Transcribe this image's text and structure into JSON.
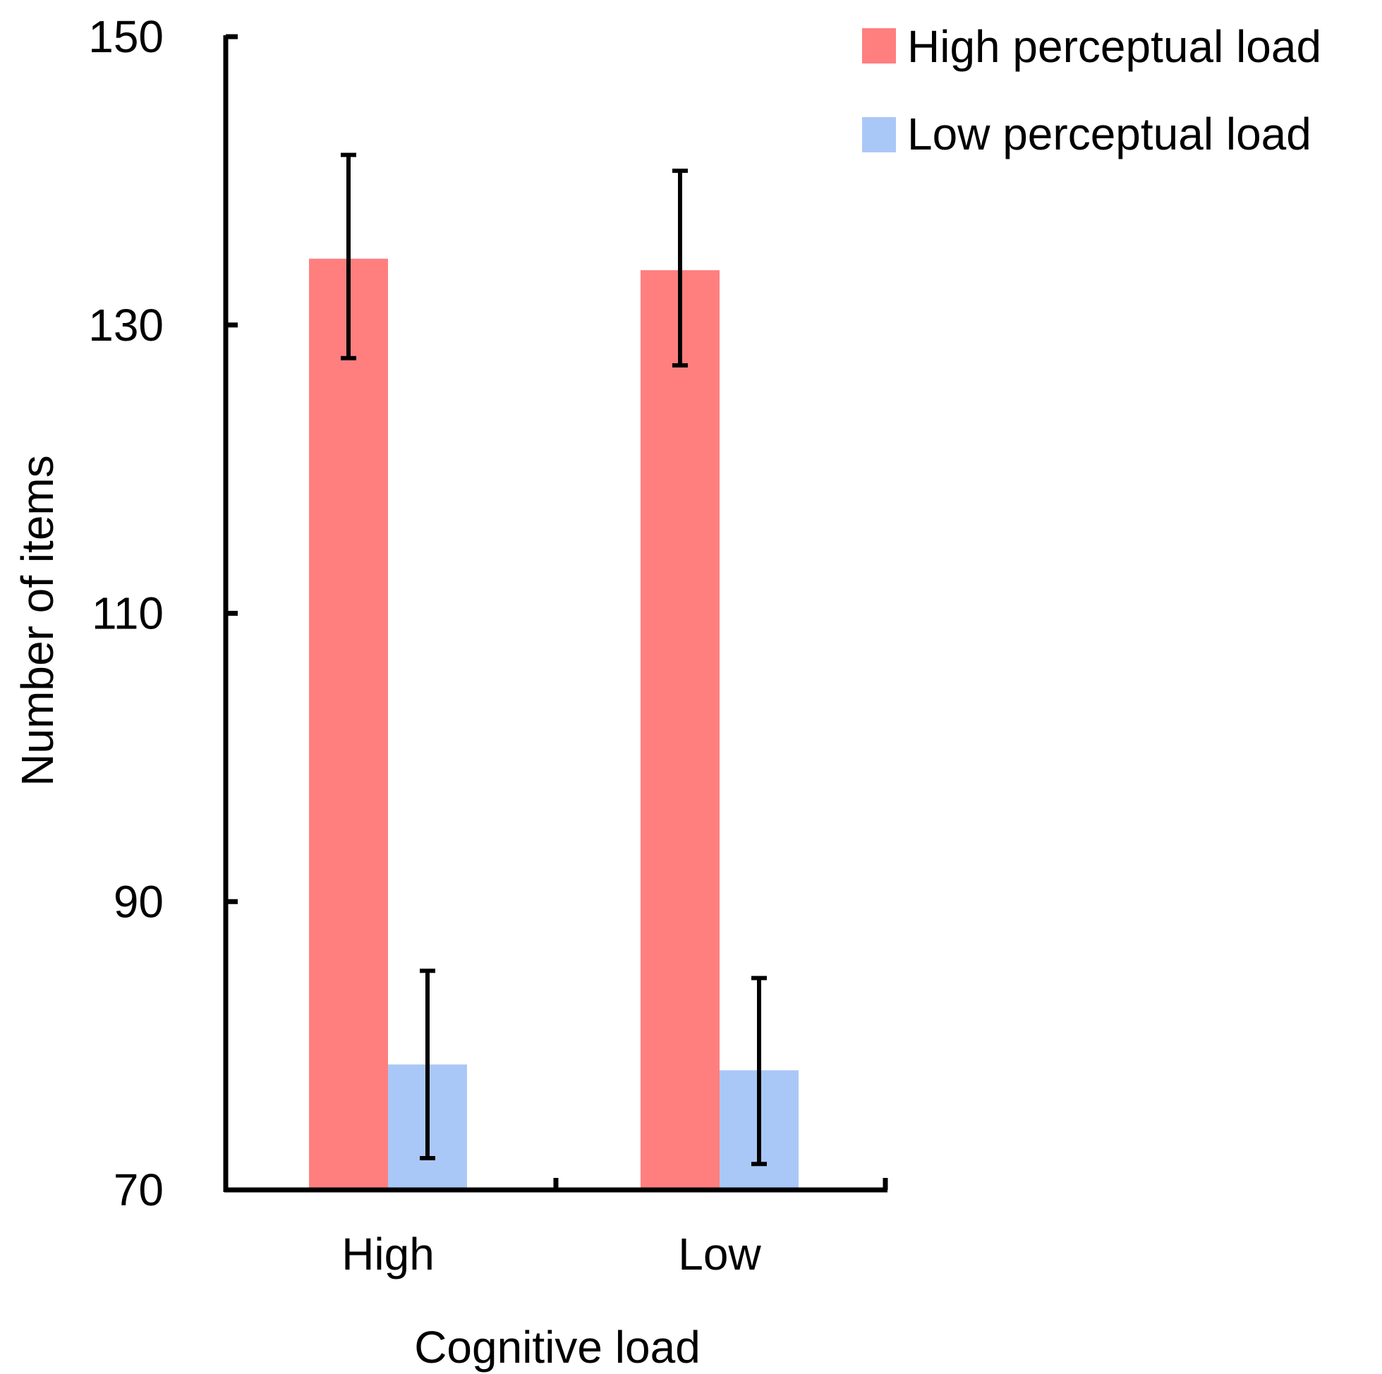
{
  "chart_data": {
    "type": "bar",
    "title": "",
    "xlabel": "Cognitive load",
    "ylabel": "Number of items",
    "categories": [
      "High",
      "Low"
    ],
    "ylim": [
      70,
      150
    ],
    "yticks": [
      70,
      90,
      110,
      130,
      150
    ],
    "grid": false,
    "legend_position": "top-right",
    "series": [
      {
        "name": "High perceptual load",
        "color": "#ff7f7f",
        "values": [
          134.6,
          133.8
        ],
        "error_low": [
          127.7,
          127.2
        ],
        "error_high": [
          141.8,
          140.7
        ]
      },
      {
        "name": "Low perceptual load",
        "color": "#aac8f7",
        "values": [
          78.7,
          78.3
        ],
        "error_low": [
          72.2,
          71.8
        ],
        "error_high": [
          85.2,
          84.7
        ]
      }
    ]
  }
}
